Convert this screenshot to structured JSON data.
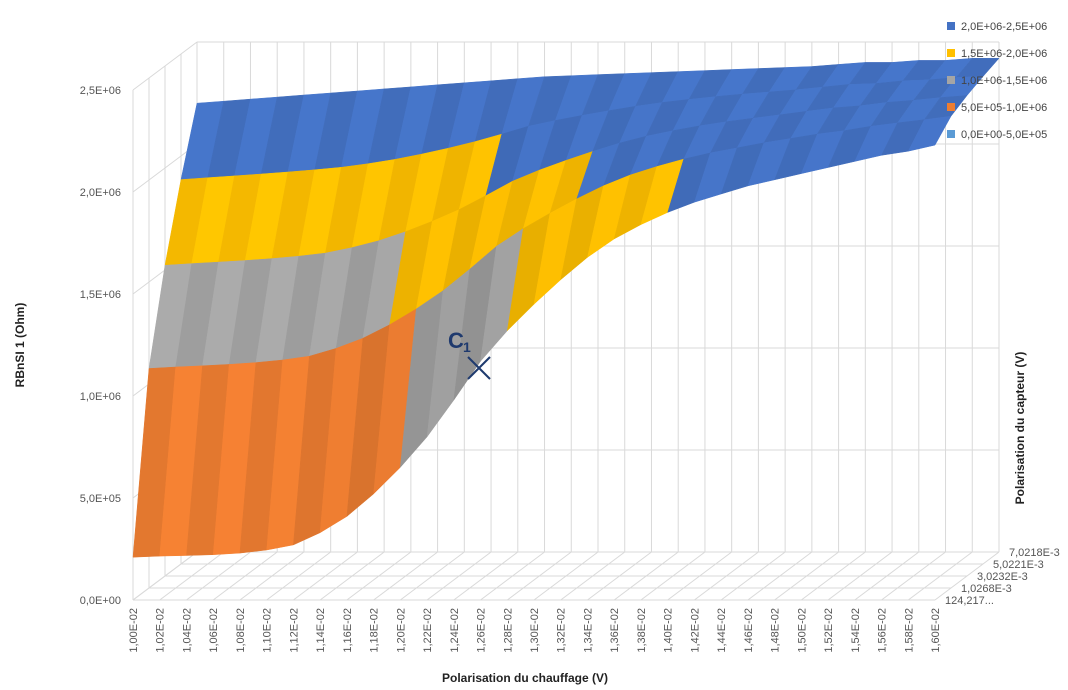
{
  "chart_data": {
    "type": "surface",
    "title": "",
    "xlabel": "Polarisation du chauffage (V)",
    "ylabel": "RBnSI 1 (Ohm)",
    "zlabel": "Polarisation du capteur (V)",
    "x_categories": [
      "1,00E-02",
      "1,02E-02",
      "1,04E-02",
      "1,06E-02",
      "1,08E-02",
      "1,10E-02",
      "1,12E-02",
      "1,14E-02",
      "1,16E-02",
      "1,18E-02",
      "1,20E-02",
      "1,22E-02",
      "1,24E-02",
      "1,26E-02",
      "1,28E-02",
      "1,30E-02",
      "1,32E-02",
      "1,34E-02",
      "1,36E-02",
      "1,38E-02",
      "1,40E-02",
      "1,42E-02",
      "1,44E-02",
      "1,46E-02",
      "1,48E-02",
      "1,50E-02",
      "1,52E-02",
      "1,54E-02",
      "1,56E-02",
      "1,58E-02",
      "1,60E-02"
    ],
    "y_ticks": [
      "0,0E+00",
      "5,0E+05",
      "1,0E+06",
      "1,5E+06",
      "2,0E+06",
      "2,5E+06"
    ],
    "depth_categories": [
      "124,217...",
      "1,0268E-3",
      "3,0232E-3",
      "5,0221E-3",
      "7,0218E-3"
    ],
    "ylim": [
      0,
      2500000
    ],
    "legend_position": "top-right",
    "legend": [
      {
        "label": "2,0E+06-2,5E+06",
        "color": "#4472c4"
      },
      {
        "label": "1,5E+06-2,0E+06",
        "color": "#ffc000"
      },
      {
        "label": "1,0E+06-1,5E+06",
        "color": "#a5a5a5"
      },
      {
        "label": "5,0E+05-1,0E+06",
        "color": "#ed7d31"
      },
      {
        "label": "0,0E+00-5,0E+05",
        "color": "#5b9bd5"
      }
    ],
    "front_edge_values": [
      210000,
      215000,
      218000,
      222000,
      230000,
      245000,
      270000,
      330000,
      410000,
      520000,
      650000,
      800000,
      980000,
      1170000,
      1320000,
      1450000,
      1570000,
      1680000,
      1770000,
      1840000,
      1900000,
      1950000,
      1990000,
      2030000,
      2060000,
      2090000,
      2120000,
      2150000,
      2180000,
      2200000,
      2230000
    ],
    "back_edge_values": [
      2200000,
      2210000,
      2220000,
      2230000,
      2240000,
      2250000,
      2260000,
      2270000,
      2280000,
      2290000,
      2300000,
      2310000,
      2320000,
      2330000,
      2335000,
      2340000,
      2345000,
      2350000,
      2355000,
      2360000,
      2365000,
      2370000,
      2375000,
      2380000,
      2390000,
      2400000,
      2400000,
      2410000,
      2410000,
      2420000,
      2420000
    ],
    "annotation": {
      "label": "C",
      "subscript": "1"
    }
  }
}
